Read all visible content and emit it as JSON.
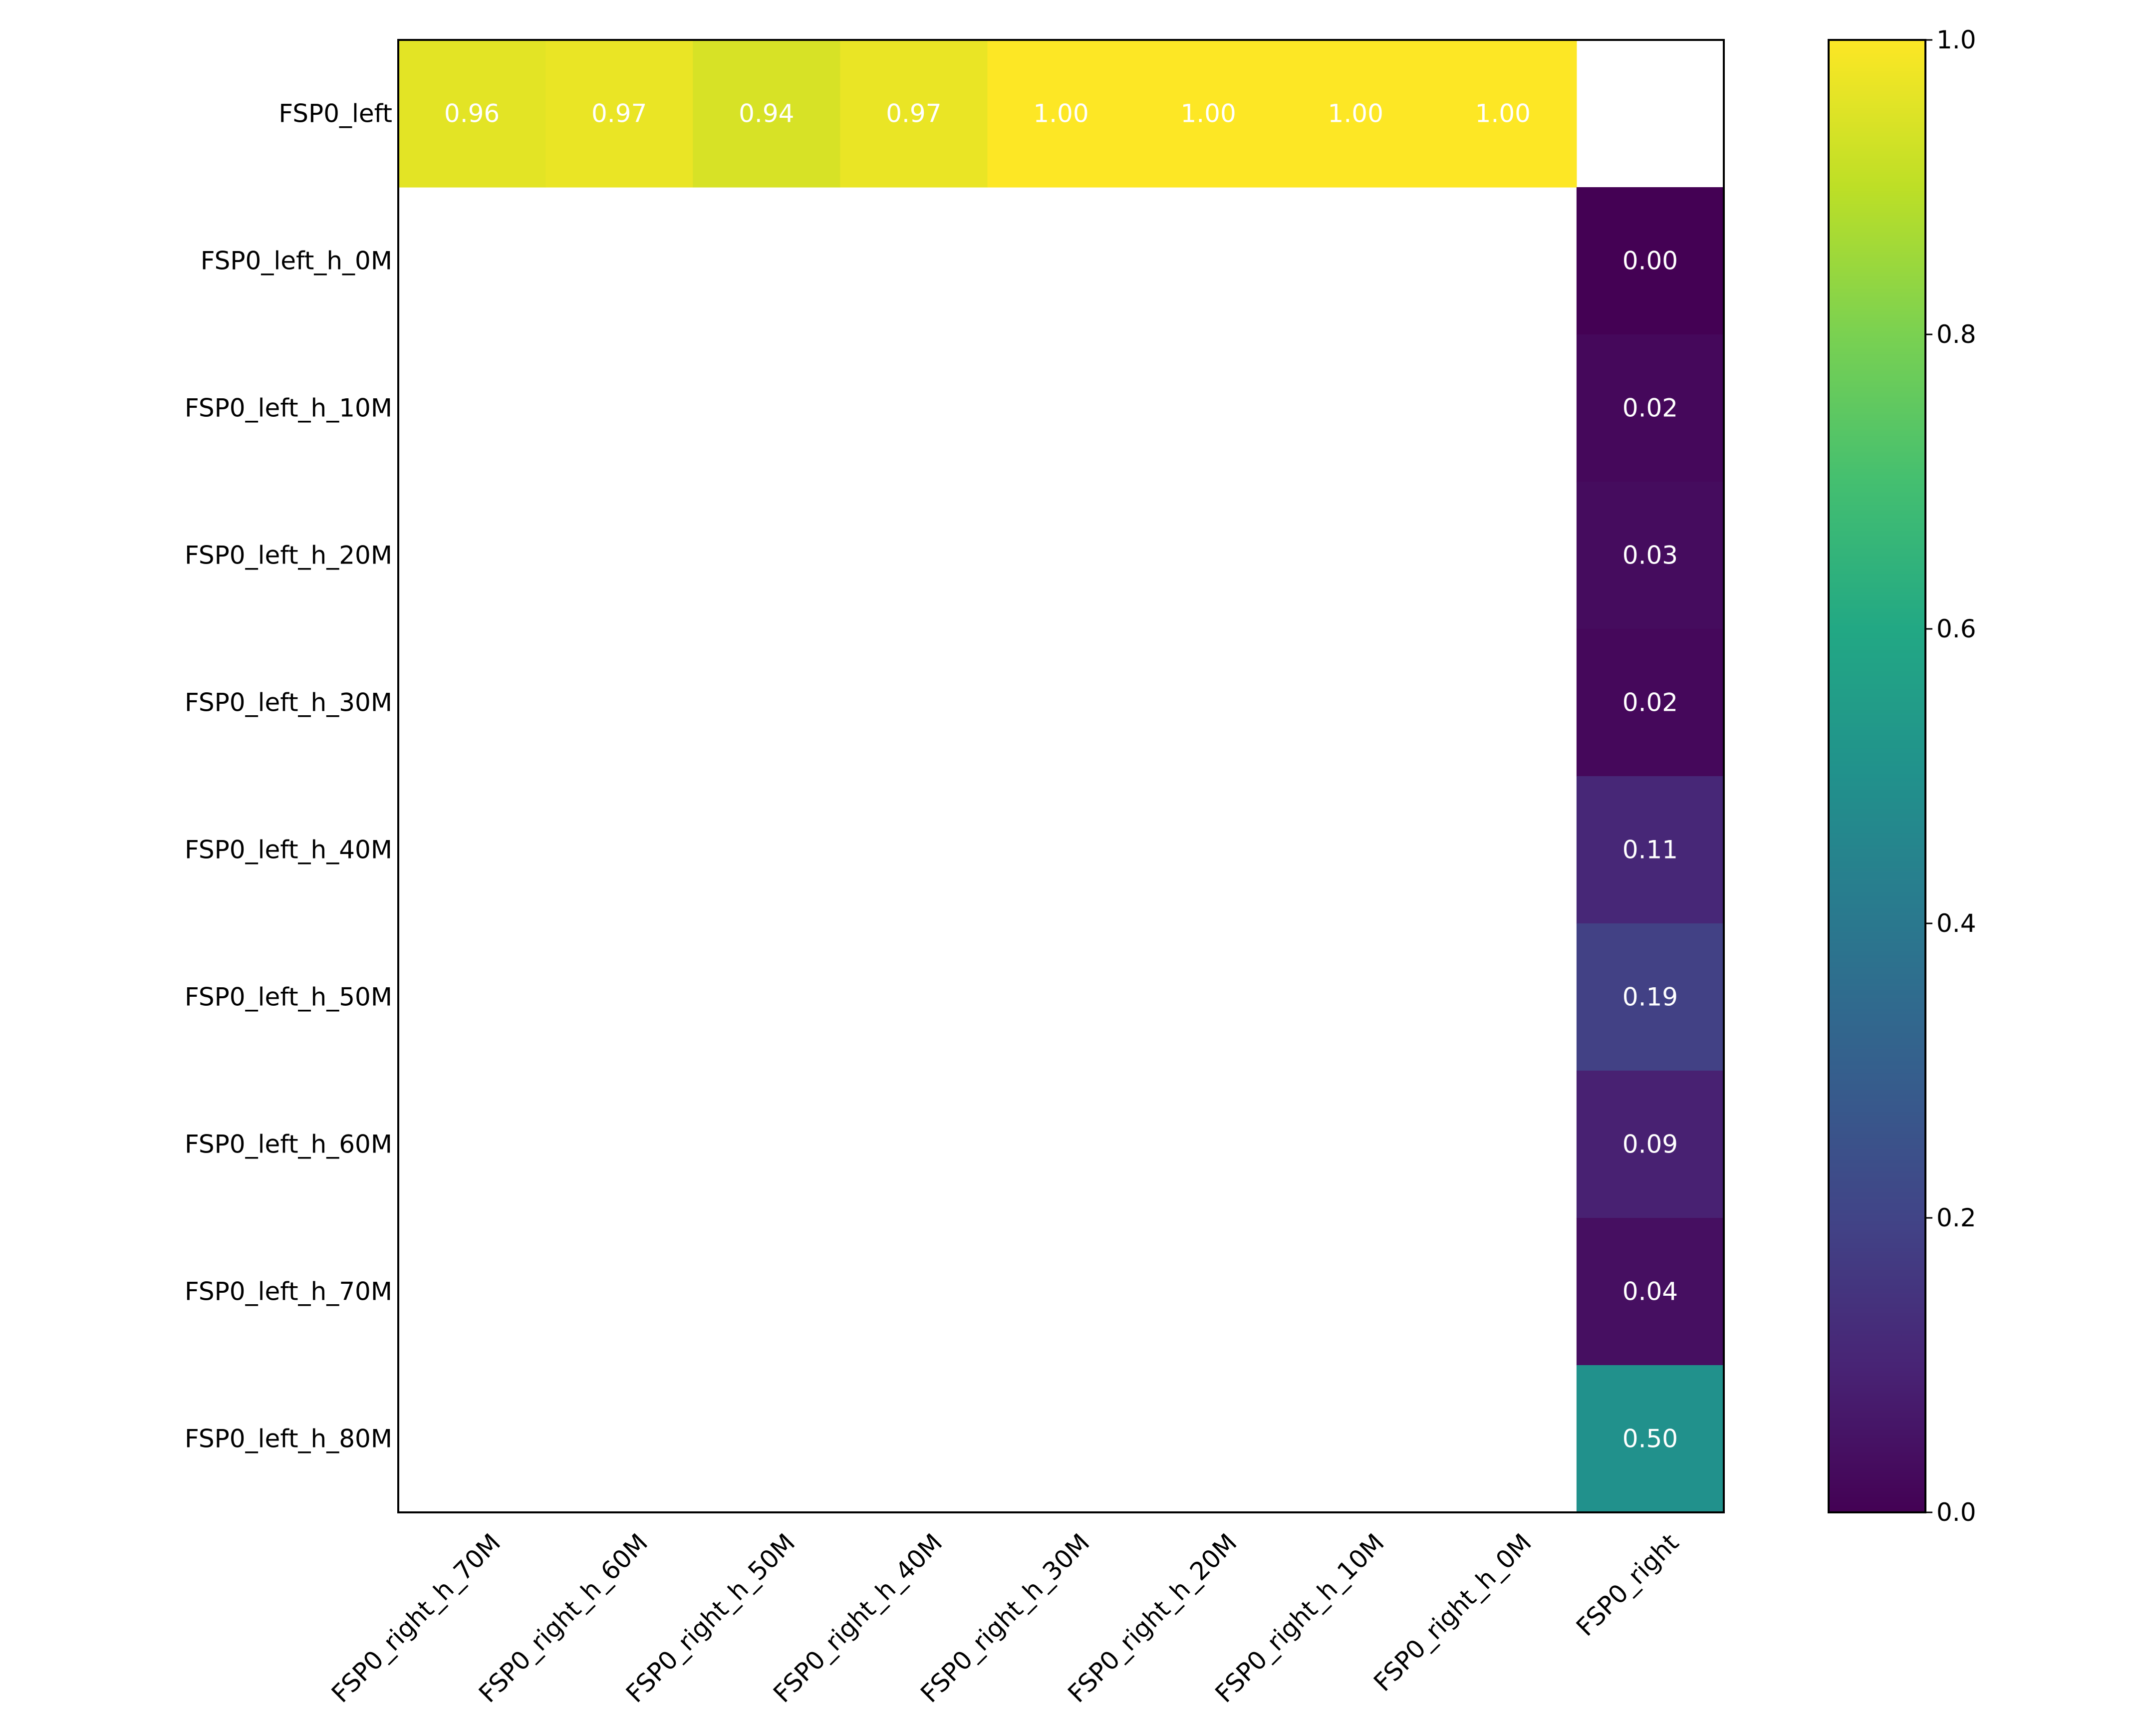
{
  "chart_data": {
    "type": "heatmap",
    "title": "",
    "xlabel": "",
    "ylabel": "",
    "colormap": "viridis",
    "value_range": [
      0.0,
      1.0
    ],
    "x_categories": [
      "FSP0_right_h_70M",
      "FSP0_right_h_60M",
      "FSP0_right_h_50M",
      "FSP0_right_h_40M",
      "FSP0_right_h_30M",
      "FSP0_right_h_20M",
      "FSP0_right_h_10M",
      "FSP0_right_h_0M",
      "FSP0_right"
    ],
    "y_categories": [
      "FSP0_left",
      "FSP0_left_h_0M",
      "FSP0_left_h_10M",
      "FSP0_left_h_20M",
      "FSP0_left_h_30M",
      "FSP0_left_h_40M",
      "FSP0_left_h_50M",
      "FSP0_left_h_60M",
      "FSP0_left_h_70M",
      "FSP0_left_h_80M"
    ],
    "cells": [
      {
        "row": 0,
        "col": 0,
        "value": 0.96,
        "label": "0.96"
      },
      {
        "row": 0,
        "col": 1,
        "value": 0.97,
        "label": "0.97"
      },
      {
        "row": 0,
        "col": 2,
        "value": 0.94,
        "label": "0.94"
      },
      {
        "row": 0,
        "col": 3,
        "value": 0.97,
        "label": "0.97"
      },
      {
        "row": 0,
        "col": 4,
        "value": 1.0,
        "label": "1.00"
      },
      {
        "row": 0,
        "col": 5,
        "value": 1.0,
        "label": "1.00"
      },
      {
        "row": 0,
        "col": 6,
        "value": 1.0,
        "label": "1.00"
      },
      {
        "row": 0,
        "col": 7,
        "value": 1.0,
        "label": "1.00"
      },
      {
        "row": 1,
        "col": 8,
        "value": 0.0,
        "label": "0.00"
      },
      {
        "row": 2,
        "col": 8,
        "value": 0.02,
        "label": "0.02"
      },
      {
        "row": 3,
        "col": 8,
        "value": 0.03,
        "label": "0.03"
      },
      {
        "row": 4,
        "col": 8,
        "value": 0.02,
        "label": "0.02"
      },
      {
        "row": 5,
        "col": 8,
        "value": 0.11,
        "label": "0.11"
      },
      {
        "row": 6,
        "col": 8,
        "value": 0.19,
        "label": "0.19"
      },
      {
        "row": 7,
        "col": 8,
        "value": 0.09,
        "label": "0.09"
      },
      {
        "row": 8,
        "col": 8,
        "value": 0.04,
        "label": "0.04"
      },
      {
        "row": 9,
        "col": 8,
        "value": 0.5,
        "label": "0.50"
      }
    ],
    "colorbar": {
      "ticks": [
        "0.0",
        "0.2",
        "0.4",
        "0.6",
        "0.8",
        "1.0"
      ],
      "tick_values": [
        0.0,
        0.2,
        0.4,
        0.6,
        0.8,
        1.0
      ]
    },
    "grid": false,
    "legend": "colorbar-right"
  }
}
